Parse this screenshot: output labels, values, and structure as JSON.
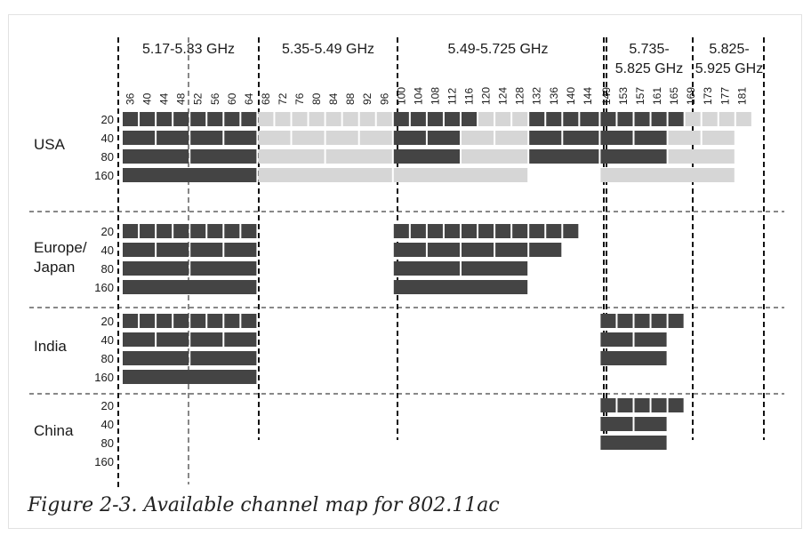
{
  "bands": [
    {
      "label": "5.17-5.33 GHz"
    },
    {
      "label": "5.35-5.49 GHz"
    },
    {
      "label": "5.49-5.725 GHz"
    },
    {
      "label_line1": "5.735-",
      "label_line2": "5.825 GHz"
    },
    {
      "label_line1": "5.825-",
      "label_line2": "5.925 GHz"
    }
  ],
  "channels": [
    36,
    40,
    44,
    48,
    52,
    56,
    60,
    64,
    68,
    72,
    76,
    80,
    84,
    88,
    92,
    96,
    100,
    104,
    108,
    112,
    116,
    120,
    124,
    128,
    132,
    136,
    140,
    144,
    149,
    153,
    157,
    161,
    165,
    169,
    173,
    177,
    181
  ],
  "bandwidths": [
    "20",
    "40",
    "80",
    "160"
  ],
  "legend_colors": {
    "available": "#444444",
    "unavailable": "#d6d6d6"
  },
  "regions": [
    {
      "name": "USA",
      "rows": {
        "20": [
          {
            "from": 0,
            "to": 8,
            "status": "available"
          },
          {
            "from": 8,
            "to": 16,
            "status": "unavailable"
          },
          {
            "from": 16,
            "to": 21,
            "status": "available"
          },
          {
            "from": 21,
            "to": 24,
            "status": "unavailable"
          },
          {
            "from": 24,
            "to": 28,
            "status": "available"
          },
          {
            "from": 28,
            "to": 33,
            "status": "available"
          },
          {
            "from": 33,
            "to": 37,
            "status": "unavailable"
          }
        ],
        "40": [
          {
            "from": 0,
            "to": 8,
            "status": "available"
          },
          {
            "from": 8,
            "to": 16,
            "status": "unavailable"
          },
          {
            "from": 16,
            "to": 20,
            "status": "available"
          },
          {
            "from": 20,
            "to": 24,
            "status": "unavailable"
          },
          {
            "from": 24,
            "to": 28,
            "status": "available"
          },
          {
            "from": 28,
            "to": 32,
            "status": "available"
          },
          {
            "from": 32,
            "to": 36,
            "status": "unavailable"
          }
        ],
        "80": [
          {
            "from": 0,
            "to": 8,
            "status": "available"
          },
          {
            "from": 8,
            "to": 16,
            "status": "unavailable"
          },
          {
            "from": 16,
            "to": 20,
            "status": "available"
          },
          {
            "from": 20,
            "to": 24,
            "status": "unavailable"
          },
          {
            "from": 24,
            "to": 28,
            "status": "available"
          },
          {
            "from": 28,
            "to": 32,
            "status": "available"
          },
          {
            "from": 32,
            "to": 36,
            "status": "unavailable"
          }
        ],
        "160": [
          {
            "from": 0,
            "to": 8,
            "status": "available"
          },
          {
            "from": 8,
            "to": 16,
            "status": "unavailable"
          },
          {
            "from": 16,
            "to": 24,
            "status": "unavailable"
          },
          {
            "from": 28,
            "to": 36,
            "status": "unavailable"
          }
        ]
      }
    },
    {
      "name": "Europe/ Japan",
      "name_line1": "Europe/",
      "name_line2": "Japan",
      "rows": {
        "20": [
          {
            "from": 0,
            "to": 8,
            "status": "available"
          },
          {
            "from": 16,
            "to": 27,
            "status": "available"
          }
        ],
        "40": [
          {
            "from": 0,
            "to": 8,
            "status": "available"
          },
          {
            "from": 16,
            "to": 26,
            "status": "available"
          }
        ],
        "80": [
          {
            "from": 0,
            "to": 8,
            "status": "available"
          },
          {
            "from": 16,
            "to": 24,
            "status": "available"
          }
        ],
        "160": [
          {
            "from": 0,
            "to": 8,
            "status": "available"
          },
          {
            "from": 16,
            "to": 24,
            "status": "available"
          }
        ]
      }
    },
    {
      "name": "India",
      "rows": {
        "20": [
          {
            "from": 0,
            "to": 8,
            "status": "available"
          },
          {
            "from": 28,
            "to": 33,
            "status": "available"
          }
        ],
        "40": [
          {
            "from": 0,
            "to": 8,
            "status": "available"
          },
          {
            "from": 28,
            "to": 32,
            "status": "available"
          }
        ],
        "80": [
          {
            "from": 0,
            "to": 8,
            "status": "available"
          },
          {
            "from": 28,
            "to": 32,
            "status": "available"
          }
        ],
        "160": [
          {
            "from": 0,
            "to": 8,
            "status": "available"
          }
        ]
      }
    },
    {
      "name": "China",
      "rows": {
        "20": [
          {
            "from": 28,
            "to": 33,
            "status": "available"
          }
        ],
        "40": [
          {
            "from": 28,
            "to": 32,
            "status": "available"
          }
        ],
        "80": [
          {
            "from": 28,
            "to": 32,
            "status": "available"
          }
        ],
        "160": []
      }
    }
  ],
  "caption": "Figure 2-3. Available channel map for 802.11ac"
}
